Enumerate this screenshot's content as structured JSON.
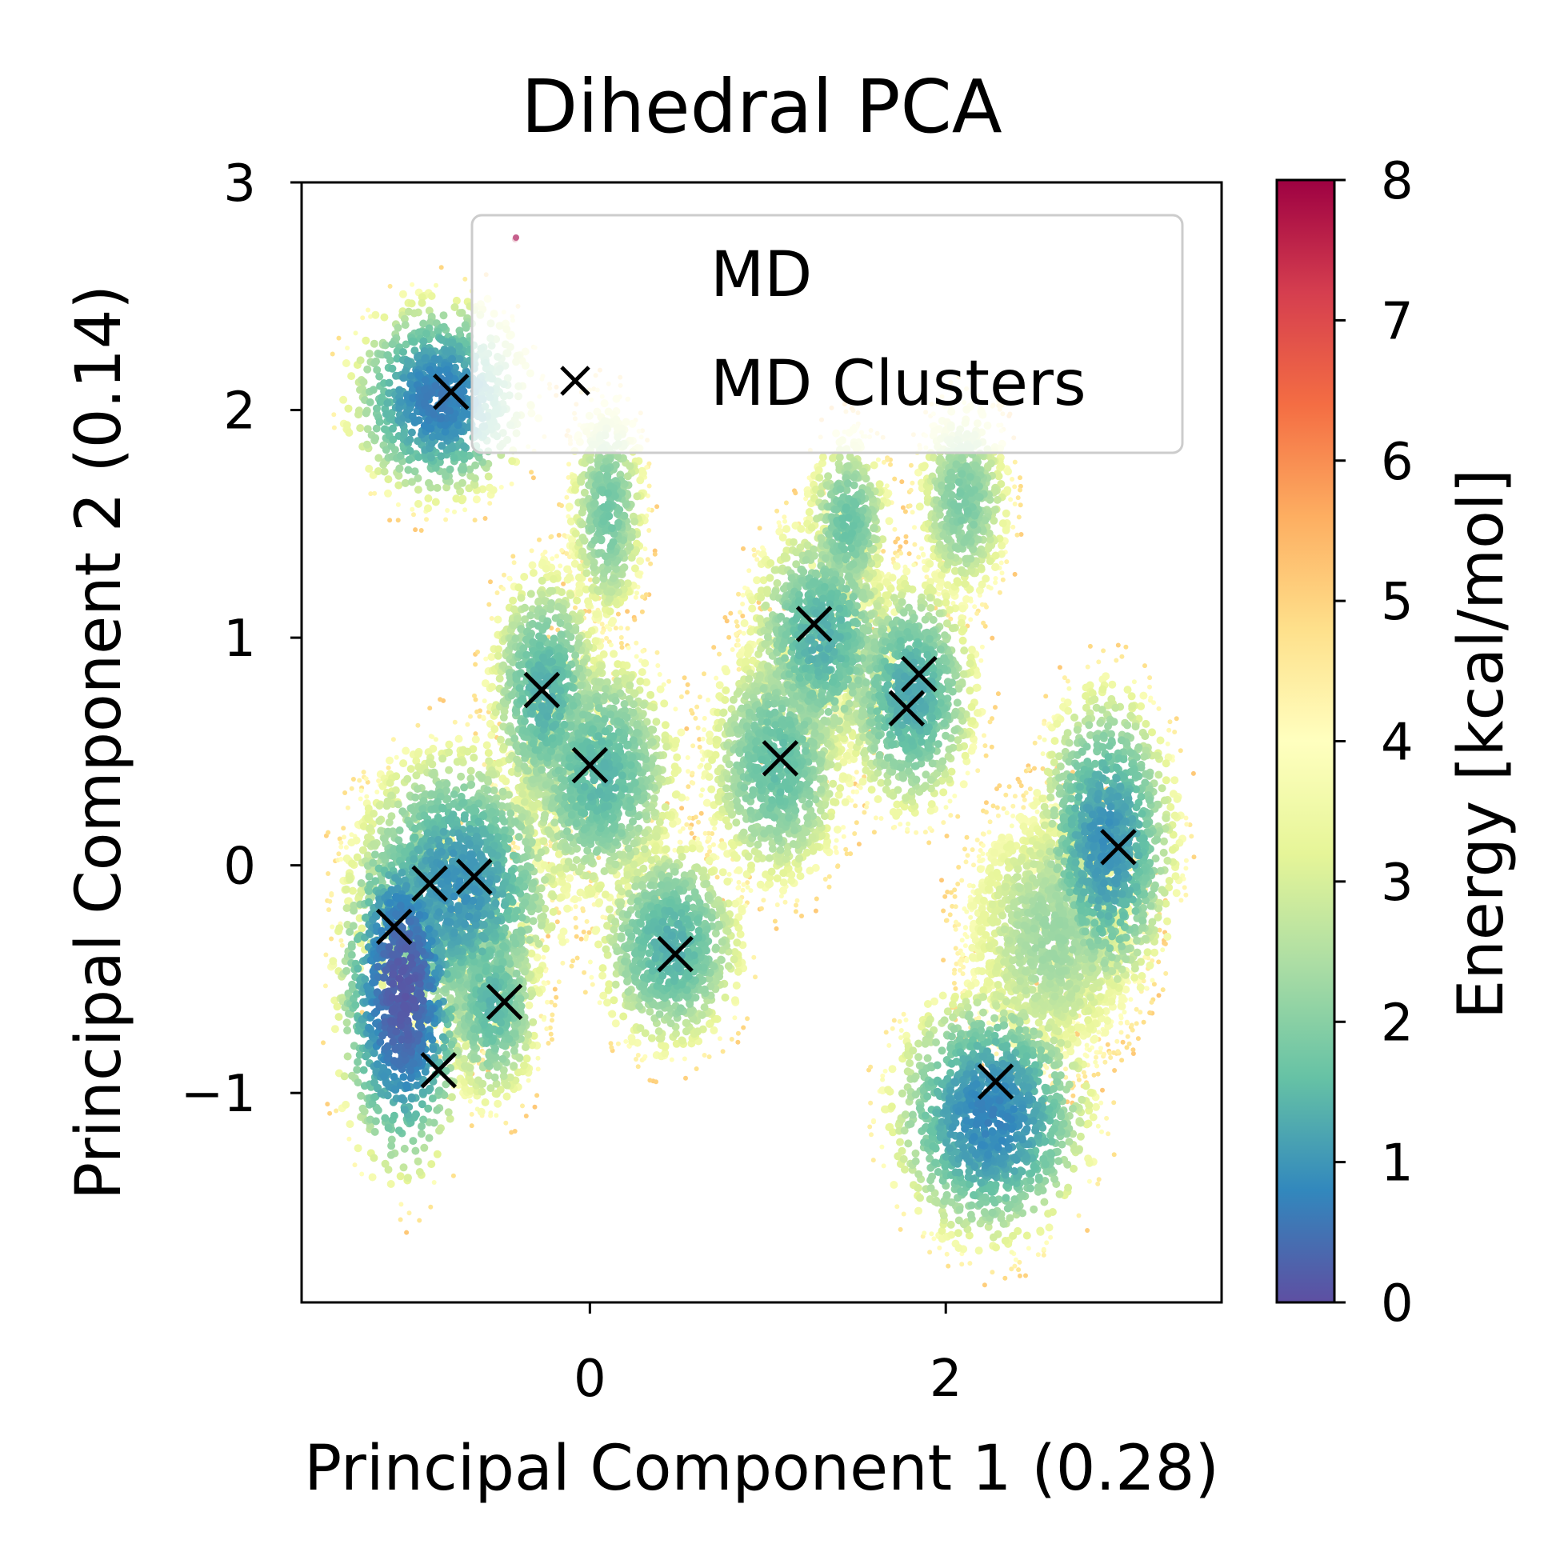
{
  "chart_data": {
    "type": "scatter",
    "title": "Dihedral PCA",
    "xlabel": "Principal Component 1 (0.28)",
    "ylabel": "Principal Component 2 (0.14)",
    "xlim": [
      -1.62,
      3.55
    ],
    "ylim": [
      -1.92,
      3.0
    ],
    "xticks": [
      0,
      2
    ],
    "xtick_labels": [
      "0",
      "2"
    ],
    "yticks": [
      -1,
      0,
      1,
      2,
      3
    ],
    "ytick_labels": [
      "−1",
      "0",
      "1",
      "2",
      "3"
    ],
    "grid": false,
    "legend": {
      "placement": "top-right",
      "entries": [
        {
          "label": "MD",
          "marker": "dot"
        },
        {
          "label": "MD Clusters",
          "marker": "x"
        }
      ]
    },
    "colorbar": {
      "label": "Energy [kcal/mol]",
      "colormap": "Spectral_r",
      "range": [
        0,
        8
      ],
      "ticks": [
        0,
        1,
        2,
        3,
        4,
        5,
        6,
        7,
        8
      ],
      "tick_labels": [
        "0",
        "1",
        "2",
        "3",
        "4",
        "5",
        "6",
        "7",
        "8"
      ],
      "colors": [
        "#5e4fa2",
        "#3288bd",
        "#66c2a5",
        "#abdda4",
        "#e6f598",
        "#ffffbf",
        "#fee08b",
        "#fdae61",
        "#f46d43",
        "#d53e4f",
        "#9e0142"
      ]
    },
    "md_density_regions": [
      {
        "x": -0.85,
        "y": 2.05,
        "sx": 0.25,
        "sy": 0.22,
        "energy_min": 0.7
      },
      {
        "x": -1.05,
        "y": -0.55,
        "sx": 0.17,
        "sy": 0.38,
        "energy_min": 0.2
      },
      {
        "x": -0.75,
        "y": -0.1,
        "sx": 0.3,
        "sy": 0.32,
        "energy_min": 1.0
      },
      {
        "x": -0.55,
        "y": -0.6,
        "sx": 0.15,
        "sy": 0.25,
        "energy_min": 1.5
      },
      {
        "x": -0.25,
        "y": 0.75,
        "sx": 0.17,
        "sy": 0.3,
        "energy_min": 1.4
      },
      {
        "x": 0.05,
        "y": 0.4,
        "sx": 0.25,
        "sy": 0.3,
        "energy_min": 1.5
      },
      {
        "x": 0.1,
        "y": 1.55,
        "sx": 0.12,
        "sy": 0.28,
        "energy_min": 1.8
      },
      {
        "x": 0.45,
        "y": -0.35,
        "sx": 0.22,
        "sy": 0.25,
        "energy_min": 1.4
      },
      {
        "x": 1.05,
        "y": 0.45,
        "sx": 0.22,
        "sy": 0.3,
        "energy_min": 1.6
      },
      {
        "x": 1.3,
        "y": 1.0,
        "sx": 0.22,
        "sy": 0.28,
        "energy_min": 1.4
      },
      {
        "x": 1.45,
        "y": 1.5,
        "sx": 0.13,
        "sy": 0.22,
        "energy_min": 1.7
      },
      {
        "x": 1.8,
        "y": 0.75,
        "sx": 0.2,
        "sy": 0.28,
        "energy_min": 1.3
      },
      {
        "x": 2.1,
        "y": 1.6,
        "sx": 0.15,
        "sy": 0.25,
        "energy_min": 1.9
      },
      {
        "x": 2.25,
        "y": -1.1,
        "sx": 0.28,
        "sy": 0.28,
        "energy_min": 0.8
      },
      {
        "x": 2.9,
        "y": 0.1,
        "sx": 0.2,
        "sy": 0.35,
        "energy_min": 1.0
      },
      {
        "x": 2.6,
        "y": -0.3,
        "sx": 0.3,
        "sy": 0.35,
        "energy_min": 2.3
      }
    ],
    "md_clusters": [
      {
        "x": -0.78,
        "y": 2.08
      },
      {
        "x": -1.1,
        "y": -0.27
      },
      {
        "x": -0.9,
        "y": -0.08
      },
      {
        "x": -0.65,
        "y": -0.05
      },
      {
        "x": -0.48,
        "y": -0.6
      },
      {
        "x": -0.85,
        "y": -0.9
      },
      {
        "x": -0.27,
        "y": 0.77
      },
      {
        "x": 0.0,
        "y": 0.44
      },
      {
        "x": 0.48,
        "y": -0.39
      },
      {
        "x": 1.07,
        "y": 0.47
      },
      {
        "x": 1.26,
        "y": 1.06
      },
      {
        "x": 1.85,
        "y": 0.84
      },
      {
        "x": 1.78,
        "y": 0.69
      },
      {
        "x": 2.28,
        "y": -0.95
      },
      {
        "x": 2.97,
        "y": 0.08
      }
    ]
  }
}
